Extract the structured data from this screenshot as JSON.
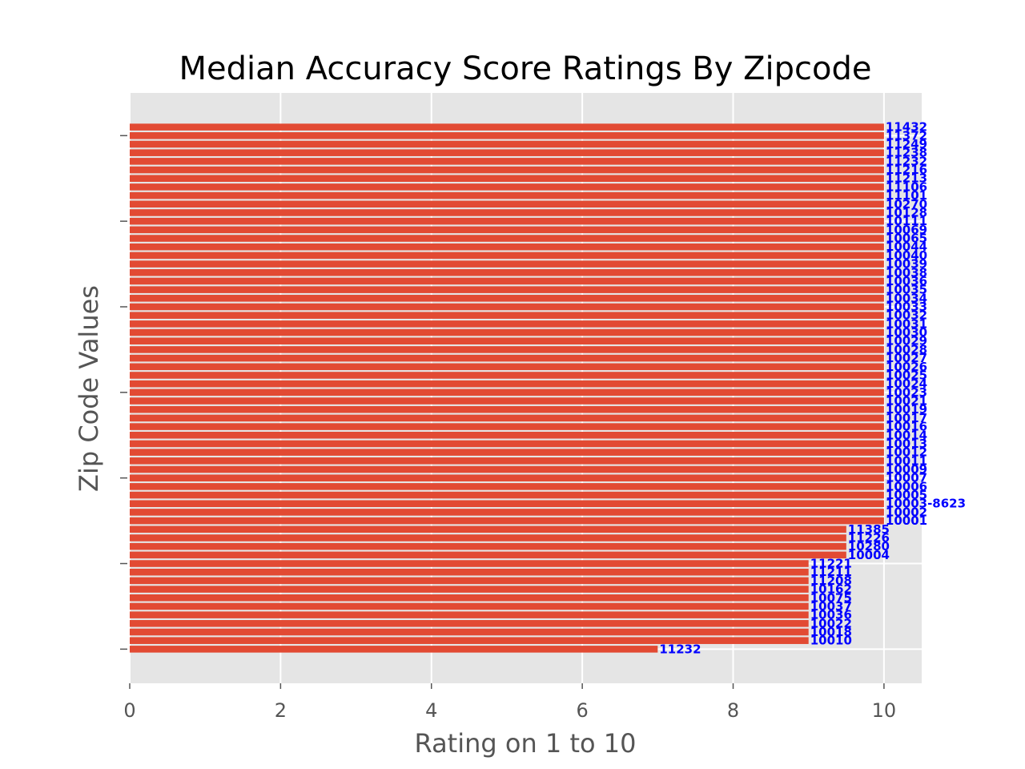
{
  "chart_data": {
    "type": "bar",
    "orientation": "horizontal",
    "title": "Median Accuracy Score Ratings By Zipcode",
    "xlabel": "Rating on 1 to 10",
    "ylabel": "Zip Code Values",
    "xlim": [
      0,
      10.5
    ],
    "xticks": [
      0,
      2,
      4,
      6,
      8,
      10
    ],
    "grid": true,
    "colors": {
      "bar": "#E24A33",
      "label": "#0000FF",
      "panel": "#E5E5E5",
      "grid": "#FFFFFF",
      "tick": "#555555"
    },
    "categories": [
      "11232",
      "10010",
      "10018",
      "10022",
      "10036",
      "10037",
      "10075",
      "10162",
      "11208",
      "11211",
      "11221",
      "10004",
      "10280",
      "11226",
      "11385",
      "10001",
      "10002",
      "10003-8623",
      "10005",
      "10006",
      "10007",
      "10009",
      "10011",
      "10012",
      "10013",
      "10014",
      "10016",
      "10017",
      "10019",
      "10021",
      "10023",
      "10024",
      "10025",
      "10026",
      "10027",
      "10028",
      "10029",
      "10030",
      "10031",
      "10032",
      "10033",
      "10034",
      "10035",
      "10036",
      "10038",
      "10039",
      "10040",
      "10044",
      "10065",
      "10069",
      "10111",
      "10128",
      "10270",
      "11101",
      "11106",
      "11213",
      "11216",
      "11232",
      "11238",
      "11249",
      "11372",
      "11432"
    ],
    "values": [
      7,
      9,
      9,
      9,
      9,
      9,
      9,
      9,
      9,
      9,
      9,
      9.5,
      9.5,
      9.5,
      9.5,
      10,
      10,
      10,
      10,
      10,
      10,
      10,
      10,
      10,
      10,
      10,
      10,
      10,
      10,
      10,
      10,
      10,
      10,
      10,
      10,
      10,
      10,
      10,
      10,
      10,
      10,
      10,
      10,
      10,
      10,
      10,
      10,
      10,
      10,
      10,
      10,
      10,
      10,
      10,
      10,
      10,
      10,
      10,
      10,
      10,
      10,
      10
    ]
  }
}
